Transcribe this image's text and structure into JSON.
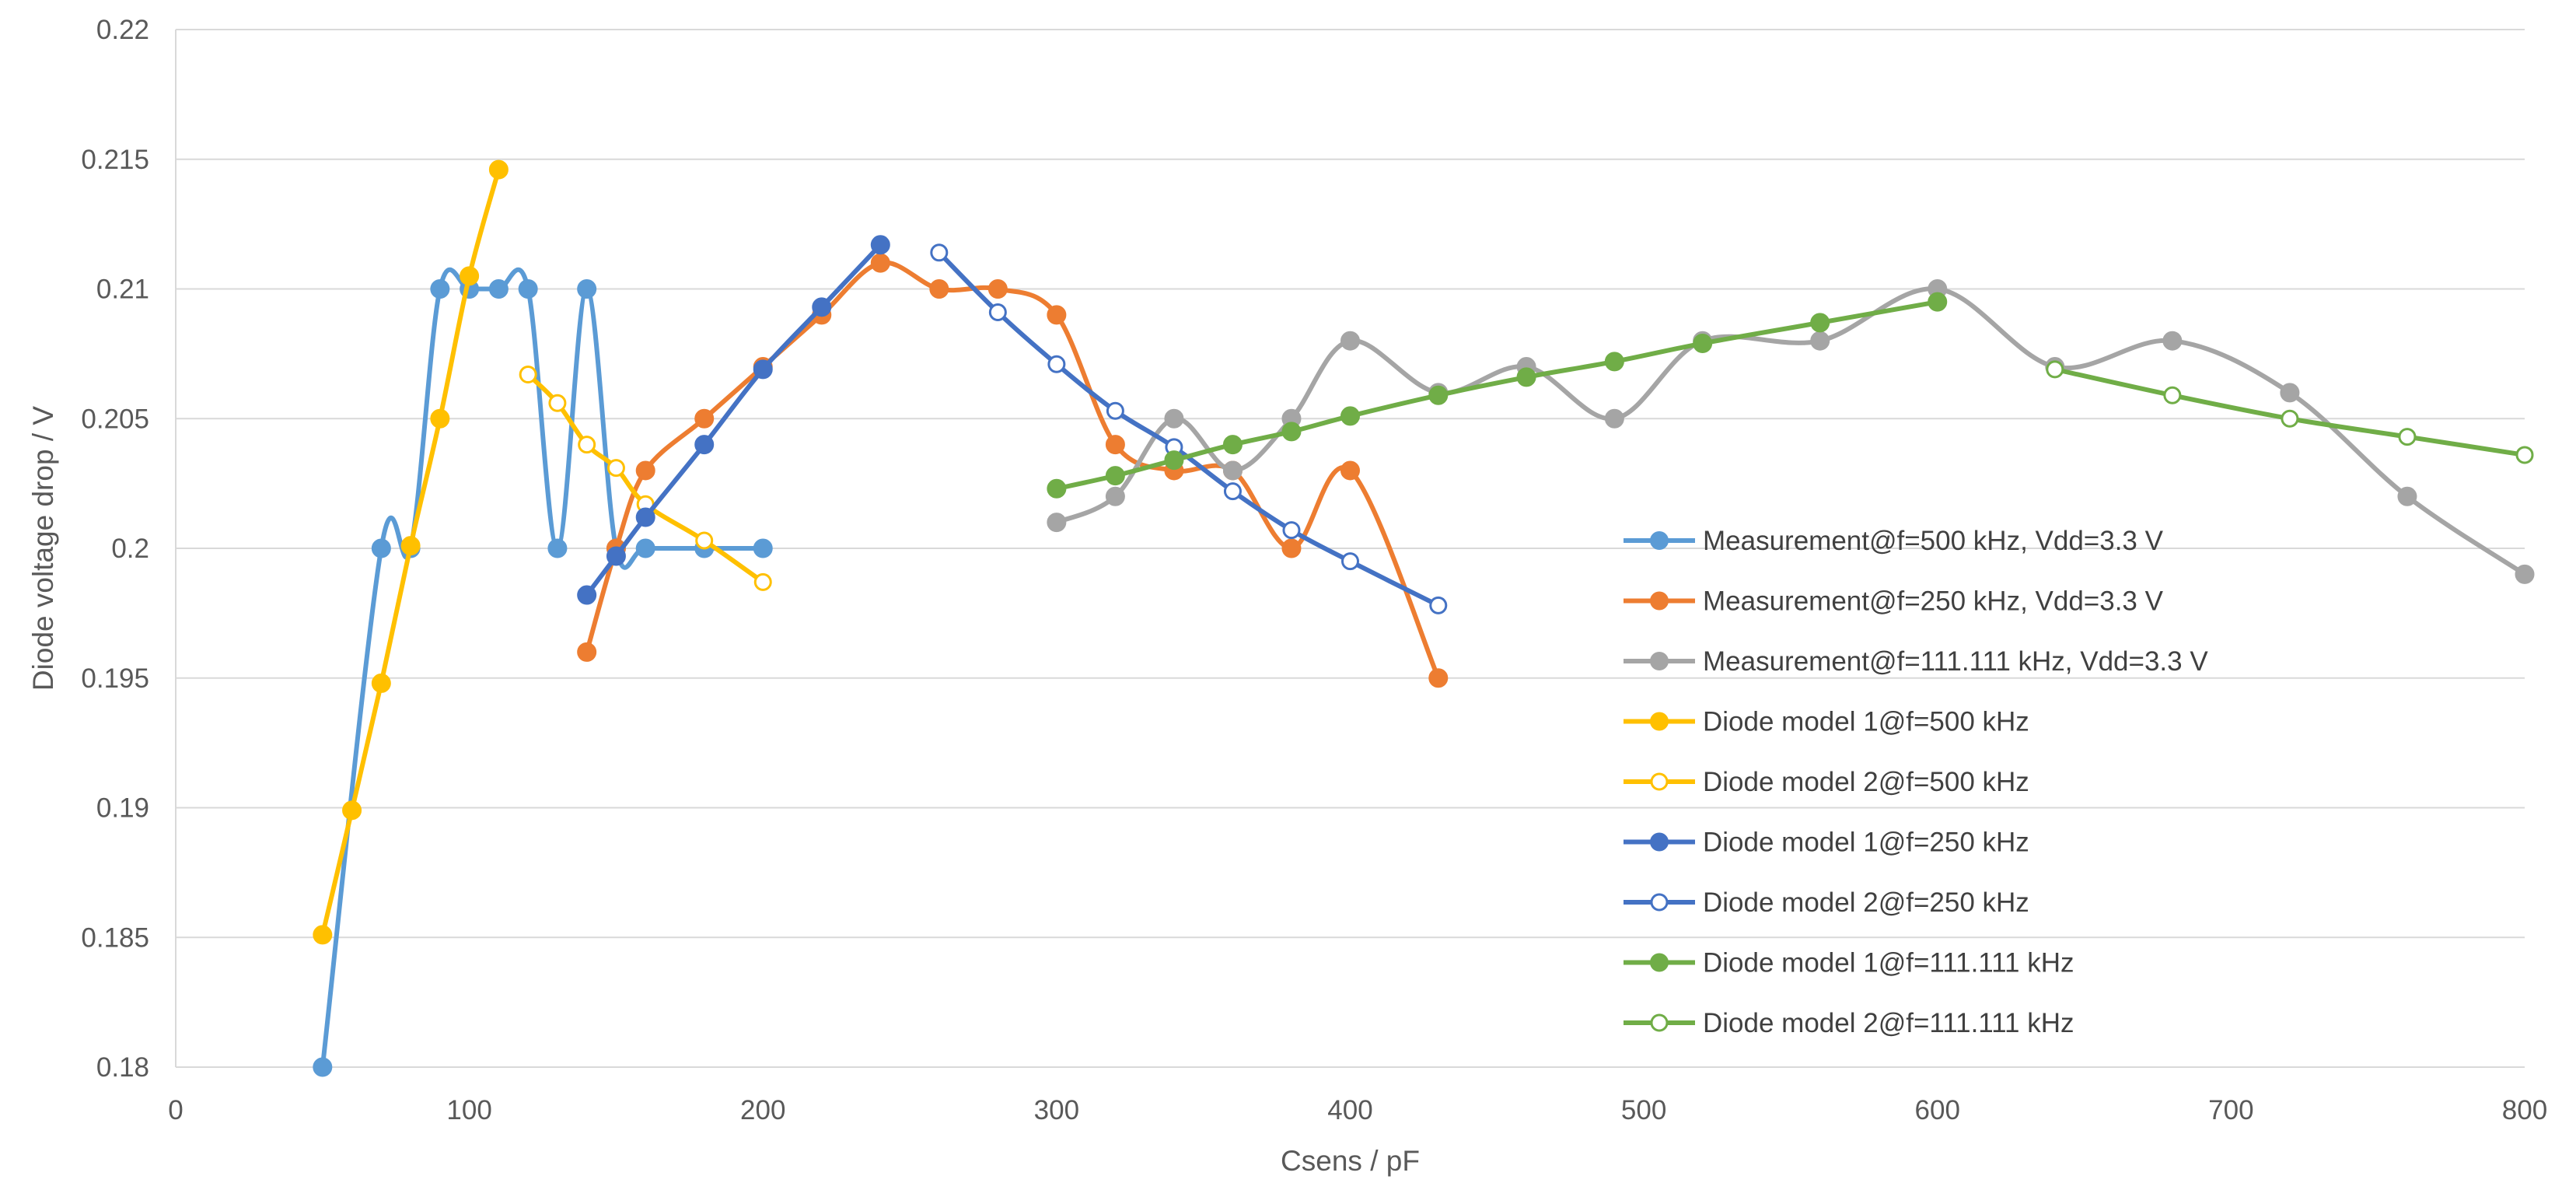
{
  "chart_data": {
    "type": "line",
    "smooth": true,
    "xlabel": "Csens / pF",
    "ylabel": "Diode voltage drop / V",
    "xlim": [
      0,
      800
    ],
    "ylim": [
      0.18,
      0.22
    ],
    "x_ticks": [
      "0",
      "100",
      "200",
      "300",
      "400",
      "500",
      "600",
      "700",
      "800"
    ],
    "y_ticks": [
      "0.18",
      "0.185",
      "0.19",
      "0.195",
      "0.2",
      "0.205",
      "0.21",
      "0.215",
      "0.22"
    ],
    "grid": "horizontal",
    "legend_position": "right-middle",
    "series": [
      {
        "name": "Measurement@f=500 kHz, Vdd=3.3 V",
        "color": "#5B9BD5",
        "marker": "filled",
        "x": [
          50,
          70,
          80,
          90,
          100,
          110,
          120,
          130,
          140,
          150,
          160,
          180,
          200
        ],
        "y": [
          0.18,
          0.2,
          0.2,
          0.21,
          0.21,
          0.21,
          0.21,
          0.2,
          0.21,
          0.2,
          0.2,
          0.2,
          0.2
        ]
      },
      {
        "name": "Measurement@f=250 kHz, Vdd=3.3 V",
        "color": "#ED7D31",
        "marker": "filled",
        "x": [
          140,
          150,
          160,
          180,
          200,
          220,
          240,
          260,
          280,
          300,
          320,
          340,
          360,
          380,
          400,
          430
        ],
        "y": [
          0.196,
          0.2,
          0.203,
          0.205,
          0.207,
          0.209,
          0.211,
          0.21,
          0.21,
          0.209,
          0.204,
          0.203,
          0.203,
          0.2,
          0.203,
          0.195
        ]
      },
      {
        "name": "Measurement@f=111.111 kHz,  Vdd=3.3 V",
        "color": "#A5A5A5",
        "marker": "filled",
        "x": [
          300,
          320,
          340,
          360,
          380,
          400,
          430,
          460,
          490,
          520,
          560,
          600,
          640,
          680,
          720,
          760,
          800
        ],
        "y": [
          0.201,
          0.202,
          0.205,
          0.203,
          0.205,
          0.208,
          0.206,
          0.207,
          0.205,
          0.208,
          0.208,
          0.21,
          0.207,
          0.208,
          0.206,
          0.202,
          0.199
        ]
      },
      {
        "name": "Diode model 1@f=500 kHz",
        "color": "#FFC000",
        "marker": "filled",
        "x": [
          50,
          60,
          70,
          80,
          90,
          100,
          110
        ],
        "y": [
          0.1851,
          0.1899,
          0.1948,
          0.2001,
          0.205,
          0.2105,
          0.2146
        ]
      },
      {
        "name": "Diode model 2@f=500 kHz",
        "color": "#FFC000",
        "marker": "hollow",
        "x": [
          120,
          130,
          140,
          150,
          160,
          180,
          200
        ],
        "y": [
          0.2067,
          0.2056,
          0.204,
          0.2031,
          0.2017,
          0.2003,
          0.1987
        ]
      },
      {
        "name": "Diode model 1@f=250 kHz",
        "color": "#4472C4",
        "marker": "filled",
        "x": [
          140,
          150,
          160,
          180,
          200,
          220,
          240
        ],
        "y": [
          0.1982,
          0.1997,
          0.2012,
          0.204,
          0.2069,
          0.2093,
          0.2117
        ]
      },
      {
        "name": "Diode model 2@f=250 kHz",
        "color": "#4472C4",
        "marker": "hollow",
        "x": [
          260,
          280,
          300,
          320,
          340,
          360,
          380,
          400,
          430
        ],
        "y": [
          0.2114,
          0.2091,
          0.2071,
          0.2053,
          0.2039,
          0.2022,
          0.2007,
          0.1995,
          0.1978
        ]
      },
      {
        "name": "Diode model 1@f=111.111 kHz",
        "color": "#70AD47",
        "marker": "filled",
        "x": [
          300,
          320,
          340,
          360,
          380,
          400,
          430,
          460,
          490,
          520,
          560,
          600
        ],
        "y": [
          0.2023,
          0.2028,
          0.2034,
          0.204,
          0.2045,
          0.2051,
          0.2059,
          0.2066,
          0.2072,
          0.2079,
          0.2087,
          0.2095
        ]
      },
      {
        "name": "Diode model 2@f=111.111 kHz",
        "color": "#70AD47",
        "marker": "hollow",
        "x": [
          640,
          680,
          720,
          760,
          800
        ],
        "y": [
          0.2069,
          0.2059,
          0.205,
          0.2043,
          0.2036
        ]
      }
    ]
  }
}
